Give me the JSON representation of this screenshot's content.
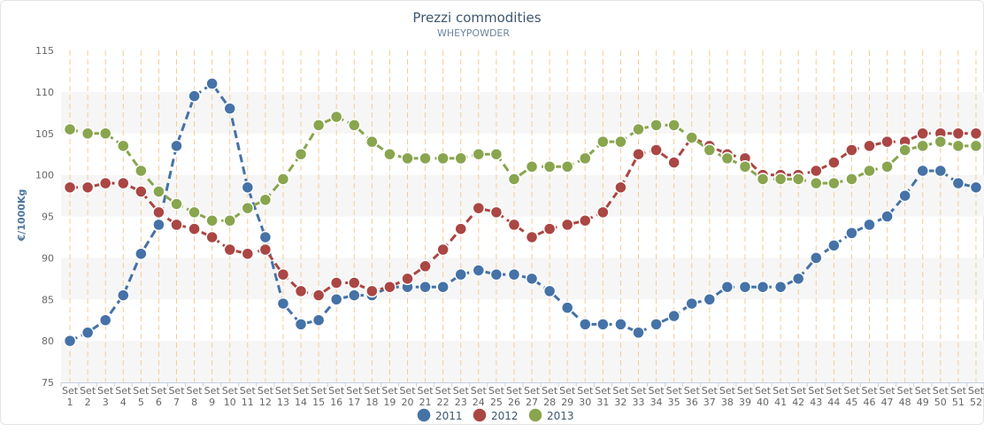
{
  "chart_data": {
    "type": "line",
    "title": "Prezzi commodities",
    "subtitle": "WHEYPOWDER",
    "ylabel": "€/1000Kg",
    "ylim": [
      75,
      115
    ],
    "yticks": [
      75,
      80,
      85,
      90,
      95,
      100,
      105,
      110,
      115
    ],
    "categories": [
      "Set 1",
      "Set 2",
      "Set 3",
      "Set 4",
      "Set 5",
      "Set 6",
      "Set 7",
      "Set 8",
      "Set 9",
      "Set 10",
      "Set 11",
      "Set 12",
      "Set 13",
      "Set 14",
      "Set 15",
      "Set 16",
      "Set 17",
      "Set 18",
      "Set 19",
      "Set 20",
      "Set 21",
      "Set 22",
      "Set 23",
      "Set 24",
      "Set 25",
      "Set 26",
      "Set 27",
      "Set 28",
      "Set 29",
      "Set 30",
      "Set 31",
      "Set 32",
      "Set 33",
      "Set 34",
      "Set 35",
      "Set 36",
      "Set 37",
      "Set 38",
      "Set 39",
      "Set 40",
      "Set 41",
      "Set 42",
      "Set 43",
      "Set 44",
      "Set 45",
      "Set 46",
      "Set 47",
      "Set 48",
      "Set 49",
      "Set 50",
      "Set 51",
      "Set 52"
    ],
    "tick_prefix": "Set",
    "tick_numbers": [
      "1",
      "2",
      "3",
      "4",
      "5",
      "6",
      "7",
      "8",
      "9",
      "10",
      "11",
      "12",
      "13",
      "14",
      "15",
      "16",
      "17",
      "18",
      "19",
      "20",
      "21",
      "22",
      "23",
      "24",
      "25",
      "26",
      "27",
      "28",
      "29",
      "30",
      "31",
      "32",
      "33",
      "34",
      "35",
      "36",
      "37",
      "38",
      "39",
      "40",
      "41",
      "42",
      "43",
      "44",
      "45",
      "46",
      "47",
      "48",
      "49",
      "50",
      "51",
      "52"
    ],
    "legend_position": "bottom",
    "grid": true,
    "series": [
      {
        "name": "2011",
        "color": "#4572a7",
        "values": [
          80,
          81,
          82.5,
          85.5,
          90.5,
          94,
          103.5,
          109.5,
          111,
          108,
          98.5,
          92.5,
          84.5,
          82,
          82.5,
          85,
          85.5,
          85.5,
          86.5,
          86.5,
          86.5,
          86.5,
          88,
          88.5,
          88,
          88,
          87.5,
          86,
          84,
          82,
          82,
          82,
          81,
          82,
          83,
          84.5,
          85,
          86.5,
          86.5,
          86.5,
          86.5,
          87.5,
          90,
          91.5,
          93,
          94,
          95,
          97.5,
          100.5,
          100.5,
          99,
          98.5
        ]
      },
      {
        "name": "2012",
        "color": "#aa4643",
        "values": [
          98.5,
          98.5,
          99,
          99,
          98,
          95.5,
          94,
          93.5,
          92.5,
          91,
          90.5,
          91,
          88,
          86,
          85.5,
          87,
          87,
          86,
          86.5,
          87.5,
          89,
          91,
          93.5,
          96,
          95.5,
          94,
          92.5,
          93.5,
          94,
          94.5,
          95.5,
          98.5,
          102.5,
          103,
          101.5,
          104.5,
          103.5,
          102.5,
          102,
          100,
          100,
          100,
          100.5,
          101.5,
          103,
          103.5,
          104,
          104,
          105,
          105,
          105,
          105
        ]
      },
      {
        "name": "2013",
        "color": "#89a54e",
        "values": [
          105.5,
          105,
          105,
          103.5,
          100.5,
          98,
          96.5,
          95.5,
          94.5,
          94.5,
          96,
          97,
          99.5,
          102.5,
          106,
          107,
          106,
          104,
          102.5,
          102,
          102,
          102,
          102,
          102.5,
          102.5,
          99.5,
          101,
          101,
          101,
          102,
          104,
          104,
          105.5,
          106,
          106,
          104.5,
          103,
          102,
          101,
          99.5,
          99.5,
          99.5,
          99,
          99,
          99.5,
          100.5,
          101,
          103,
          103.5,
          104,
          103.5,
          103.5
        ]
      }
    ]
  }
}
